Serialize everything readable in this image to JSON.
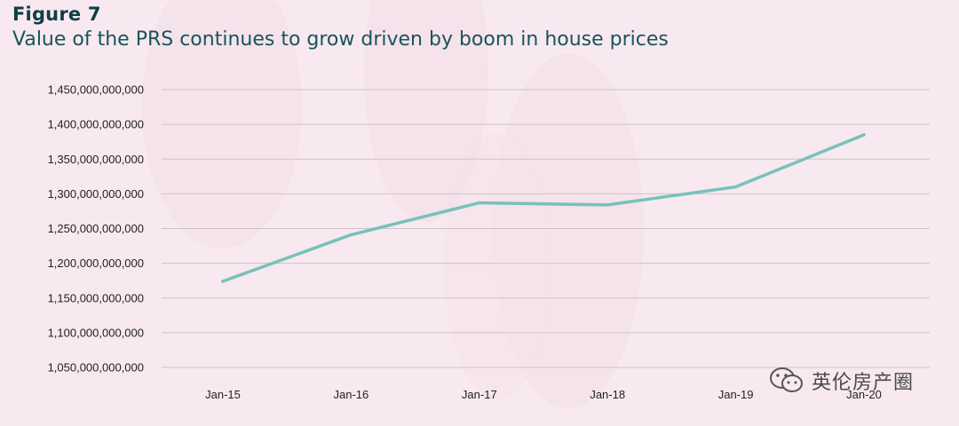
{
  "figure_label": "Figure 7",
  "title": "Value of the PRS continues to grow driven by boom in house prices",
  "watermark": "英伦房产圈",
  "chart_data": {
    "type": "line",
    "title": "Value of the PRS continues to grow driven by boom in house prices",
    "xlabel": "",
    "ylabel": "",
    "x": [
      "Jan-15",
      "Jan-16",
      "Jan-17",
      "Jan-18",
      "Jan-19",
      "Jan-20"
    ],
    "y_ticks": [
      "1,050,000,000,000",
      "1,100,000,000,000",
      "1,150,000,000,000",
      "1,200,000,000,000",
      "1,250,000,000,000",
      "1,300,000,000,000",
      "1,350,000,000,000",
      "1,400,000,000,000",
      "1,450,000,000,000"
    ],
    "ylim": [
      1050000000000,
      1450000000000
    ],
    "grid": true,
    "legend": "none",
    "series": [
      {
        "color": "#76c2bb",
        "values": [
          1174000000000,
          1241000000000,
          1287000000000,
          1284000000000,
          1310000000000,
          1385000000000
        ]
      }
    ]
  }
}
